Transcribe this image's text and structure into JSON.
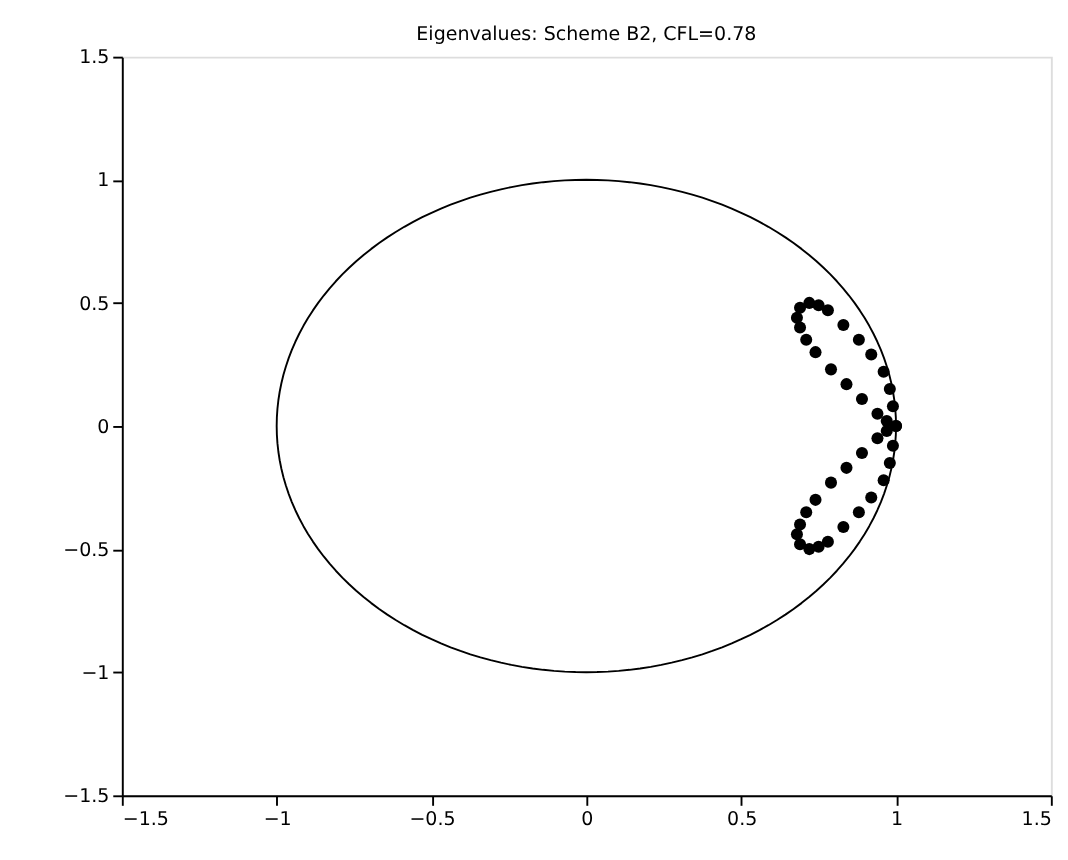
{
  "chart_data": {
    "type": "scatter",
    "title": "Eigenvalues: Scheme B2, CFL=0.78",
    "xlim": [
      -1.5,
      1.5
    ],
    "ylim": [
      -1.5,
      1.5
    ],
    "xticks": [
      -1.5,
      -1,
      -0.5,
      0,
      0.5,
      1,
      1.5
    ],
    "yticks": [
      -1.5,
      -1,
      -0.5,
      0,
      0.5,
      1,
      1.5
    ],
    "grid": false,
    "marker": "circle",
    "series": [
      {
        "color": "#000000",
        "x": [
          1,
          0.99,
          0.98,
          0.96,
          0.92,
          0.88,
          0.83,
          0.78,
          0.75,
          0.72,
          0.69,
          0.68,
          0.69,
          0.71,
          0.74,
          0.79,
          0.84,
          0.89,
          0.94,
          0.97
        ],
        "values": [
          0,
          0.08,
          0.15,
          0.22,
          0.29,
          0.35,
          0.41,
          0.47,
          0.49,
          0.5,
          0.48,
          0.44,
          0.4,
          0.35,
          0.3,
          0.23,
          0.17,
          0.11,
          0.05,
          0.02
        ]
      },
      {
        "color": "#000000",
        "x": [
          1,
          0.99,
          0.98,
          0.96,
          0.92,
          0.88,
          0.83,
          0.78,
          0.75,
          0.72,
          0.69,
          0.68,
          0.69,
          0.71,
          0.74,
          0.79,
          0.84,
          0.89,
          0.94,
          0.97
        ],
        "values": [
          0,
          -0.08,
          -0.15,
          -0.22,
          -0.29,
          -0.35,
          -0.41,
          -0.47,
          -0.49,
          -0.5,
          -0.48,
          -0.44,
          -0.4,
          -0.35,
          -0.3,
          -0.23,
          -0.17,
          -0.11,
          -0.05,
          -0.02
        ]
      }
    ]
  }
}
